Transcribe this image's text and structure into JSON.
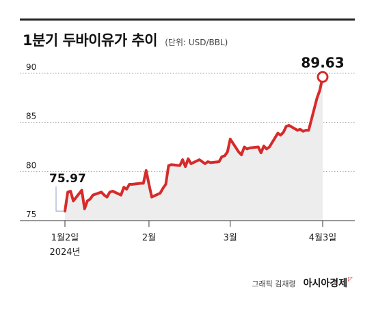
{
  "header": {
    "title": "1분기 두바이유가 추이",
    "unit": "(단위: USD/BBL)"
  },
  "footer": {
    "credit": "그래픽 김채령",
    "brand": "아시아경제"
  },
  "colors": {
    "line": "#d62b2b",
    "area": "#ededed",
    "grid": "#9a9a9a",
    "text": "#111111"
  },
  "chart_data": {
    "type": "line",
    "title": "1분기 두바이유가 추이",
    "ylabel": "(단위: USD/BBL)",
    "ylim": [
      74.5,
      90.5
    ],
    "yticks": [
      75,
      80,
      85,
      90
    ],
    "x_start": "2024-01-02",
    "x_end": "2024-04-03",
    "xtick_labels": [
      {
        "date": "2024-01-02",
        "label": "1월2일",
        "sublabel": "2024년"
      },
      {
        "date": "2024-02-01",
        "label": "2월",
        "sublabel": ""
      },
      {
        "date": "2024-03-01",
        "label": "3월",
        "sublabel": ""
      },
      {
        "date": "2024-04-03",
        "label": "4월3일",
        "sublabel": ""
      }
    ],
    "annotations": [
      {
        "date": "2024-01-02",
        "value": 75.97,
        "label": "75.97"
      },
      {
        "date": "2024-04-03",
        "value": 89.63,
        "label": "89.63"
      }
    ],
    "series": [
      {
        "points": [
          [
            "2024-01-02",
            75.97
          ],
          [
            "2024-01-03",
            77.9
          ],
          [
            "2024-01-04",
            78.0
          ],
          [
            "2024-01-05",
            77.0
          ],
          [
            "2024-01-08",
            78.1
          ],
          [
            "2024-01-09",
            76.2
          ],
          [
            "2024-01-10",
            77.0
          ],
          [
            "2024-01-11",
            77.2
          ],
          [
            "2024-01-12",
            77.6
          ],
          [
            "2024-01-15",
            77.9
          ],
          [
            "2024-01-16",
            77.6
          ],
          [
            "2024-01-17",
            77.4
          ],
          [
            "2024-01-18",
            77.9
          ],
          [
            "2024-01-19",
            78.0
          ],
          [
            "2024-01-22",
            77.6
          ],
          [
            "2024-01-23",
            78.4
          ],
          [
            "2024-01-24",
            78.2
          ],
          [
            "2024-01-25",
            78.7
          ],
          [
            "2024-01-26",
            78.7
          ],
          [
            "2024-01-29",
            78.8
          ],
          [
            "2024-01-30",
            78.8
          ],
          [
            "2024-01-31",
            80.1
          ],
          [
            "2024-02-01",
            78.7
          ],
          [
            "2024-02-02",
            77.4
          ],
          [
            "2024-02-05",
            77.8
          ],
          [
            "2024-02-06",
            78.3
          ],
          [
            "2024-02-07",
            78.7
          ],
          [
            "2024-02-08",
            80.6
          ],
          [
            "2024-02-09",
            80.7
          ],
          [
            "2024-02-12",
            80.6
          ],
          [
            "2024-02-13",
            81.2
          ],
          [
            "2024-02-14",
            80.5
          ],
          [
            "2024-02-15",
            81.3
          ],
          [
            "2024-02-16",
            80.8
          ],
          [
            "2024-02-19",
            81.2
          ],
          [
            "2024-02-20",
            81.0
          ],
          [
            "2024-02-21",
            80.8
          ],
          [
            "2024-02-22",
            81.0
          ],
          [
            "2024-02-23",
            80.9
          ],
          [
            "2024-02-26",
            81.0
          ],
          [
            "2024-02-27",
            81.5
          ],
          [
            "2024-02-28",
            81.6
          ],
          [
            "2024-02-29",
            82.0
          ],
          [
            "2024-03-01",
            83.3
          ],
          [
            "2024-03-04",
            82.0
          ],
          [
            "2024-03-05",
            81.7
          ],
          [
            "2024-03-06",
            82.5
          ],
          [
            "2024-03-07",
            82.3
          ],
          [
            "2024-03-08",
            82.4
          ],
          [
            "2024-03-11",
            82.5
          ],
          [
            "2024-03-12",
            81.9
          ],
          [
            "2024-03-13",
            82.6
          ],
          [
            "2024-03-14",
            82.3
          ],
          [
            "2024-03-15",
            82.5
          ],
          [
            "2024-03-18",
            83.9
          ],
          [
            "2024-03-19",
            83.7
          ],
          [
            "2024-03-20",
            84.0
          ],
          [
            "2024-03-21",
            84.6
          ],
          [
            "2024-03-22",
            84.7
          ],
          [
            "2024-03-25",
            84.2
          ],
          [
            "2024-03-26",
            84.3
          ],
          [
            "2024-03-27",
            84.1
          ],
          [
            "2024-03-28",
            84.2
          ],
          [
            "2024-03-29",
            84.2
          ],
          [
            "2024-04-01",
            87.5
          ],
          [
            "2024-04-02",
            88.3
          ],
          [
            "2024-04-03",
            89.63
          ]
        ]
      }
    ]
  }
}
